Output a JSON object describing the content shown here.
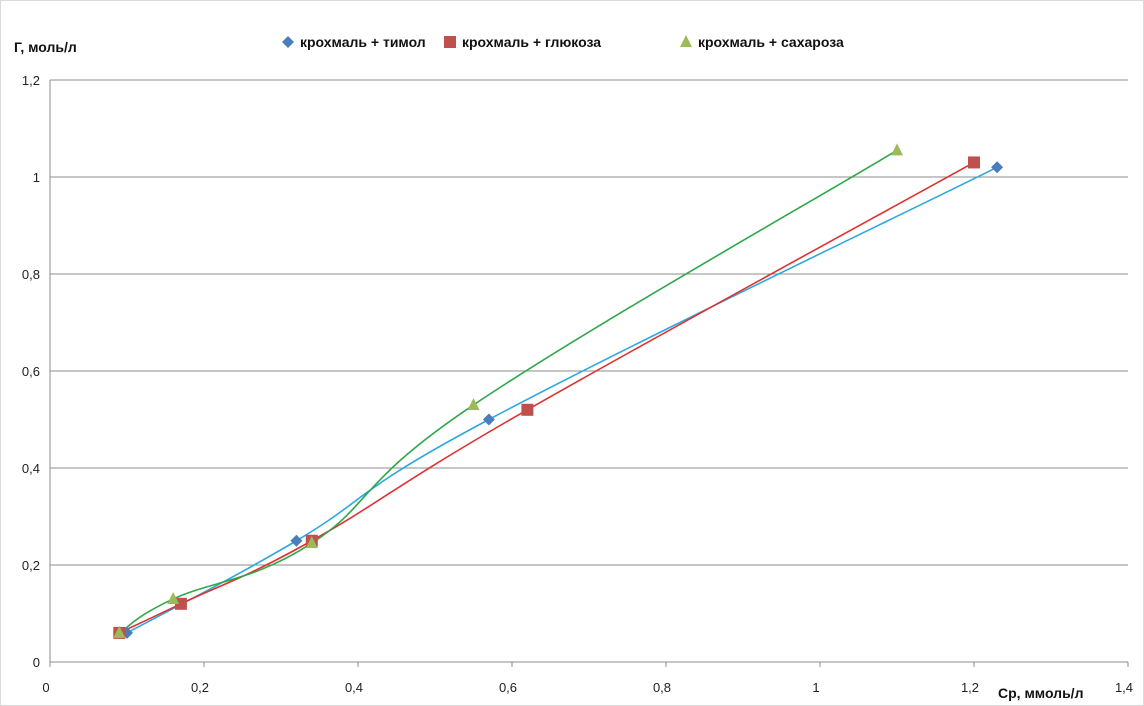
{
  "chart_data": {
    "type": "scatter",
    "title": "",
    "ylabel": "Г, моль/л",
    "xlabel": "Ср, ммоль/л",
    "xlim": [
      0,
      1.4
    ],
    "ylim": [
      0,
      1.2
    ],
    "x_ticks": [
      "0",
      "0,2",
      "0,4",
      "0,6",
      "0,8",
      "1",
      "1,2",
      "1,4"
    ],
    "y_ticks": [
      "0",
      "0,2",
      "0,4",
      "0,6",
      "0,8",
      "1",
      "1,2"
    ],
    "grid": "horizontal",
    "legend_position": "top",
    "series": [
      {
        "name": "крохмаль + тимол",
        "marker": "diamond",
        "color": "#4a7ebb",
        "line_color": "#2ea8e0",
        "x": [
          0.1,
          0.32,
          0.57,
          1.23
        ],
        "y": [
          0.06,
          0.25,
          0.5,
          1.02
        ]
      },
      {
        "name": "крохмаль + глюкоза",
        "marker": "square",
        "color": "#c0504d",
        "line_color": "#e03030",
        "x": [
          0.09,
          0.17,
          0.34,
          0.62,
          1.2
        ],
        "y": [
          0.06,
          0.12,
          0.25,
          0.52,
          1.03
        ]
      },
      {
        "name": "крохмаль + сахароза",
        "marker": "triangle",
        "color": "#9bbb59",
        "line_color": "#2ea84a",
        "x": [
          0.09,
          0.16,
          0.34,
          0.55,
          1.1
        ],
        "y": [
          0.06,
          0.13,
          0.245,
          0.53,
          1.055
        ]
      }
    ]
  }
}
